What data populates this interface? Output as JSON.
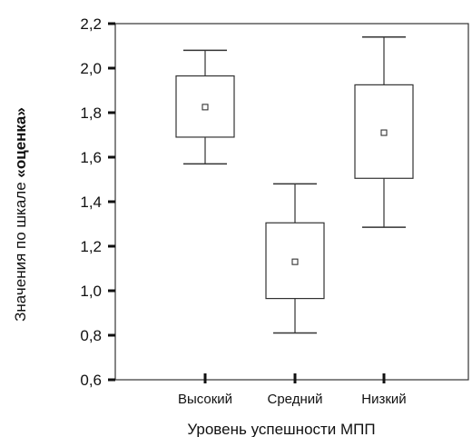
{
  "chart_data": {
    "type": "boxplot",
    "title": "",
    "xlabel": "Уровень успешности МПП",
    "ylabel": "Значения по шкале «оценка»",
    "ylabel_parts": {
      "prefix": "Значения по шкале ",
      "emphasis": "«оценка»"
    },
    "ylim": [
      0.6,
      2.2
    ],
    "yticks": [
      0.6,
      0.8,
      1.0,
      1.2,
      1.4,
      1.6,
      1.8,
      2.0,
      2.2
    ],
    "ytick_labels": [
      "0,6",
      "0,8",
      "1,0",
      "1,2",
      "1,4",
      "1,6",
      "1,8",
      "2,0",
      "2,2"
    ],
    "grid": false,
    "categories": [
      "Высокий",
      "Средний",
      "Низкий"
    ],
    "boxes": [
      {
        "category": "Высокий",
        "whisker_low": 1.57,
        "q1": 1.69,
        "median": 1.825,
        "q3": 1.965,
        "whisker_high": 2.08
      },
      {
        "category": "Средний",
        "whisker_low": 0.81,
        "q1": 0.965,
        "median": 1.13,
        "q3": 1.305,
        "whisker_high": 1.48
      },
      {
        "category": "Низкий",
        "whisker_low": 1.285,
        "q1": 1.505,
        "median": 1.71,
        "q3": 1.925,
        "whisker_high": 2.14
      }
    ]
  }
}
